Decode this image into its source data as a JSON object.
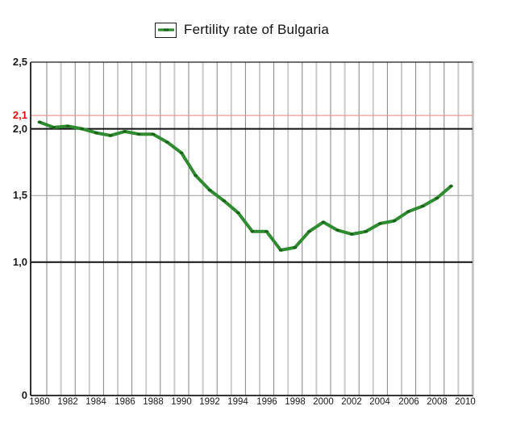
{
  "legend": {
    "label": "Fertility rate of Bulgaria"
  },
  "chart_data": {
    "type": "line",
    "title": "Fertility rate of Bulgaria",
    "series_name": "Fertility rate of Bulgaria",
    "x": [
      1980,
      1981,
      1982,
      1983,
      1984,
      1985,
      1986,
      1987,
      1988,
      1989,
      1990,
      1991,
      1992,
      1993,
      1994,
      1995,
      1996,
      1997,
      1998,
      1999,
      2000,
      2001,
      2002,
      2003,
      2004,
      2005,
      2006,
      2007,
      2008,
      2009
    ],
    "values": [
      2.05,
      2.01,
      2.02,
      2.0,
      1.97,
      1.95,
      1.98,
      1.96,
      1.96,
      1.9,
      1.82,
      1.65,
      1.54,
      1.46,
      1.37,
      1.23,
      1.23,
      1.09,
      1.11,
      1.23,
      1.3,
      1.24,
      1.21,
      1.23,
      1.29,
      1.31,
      1.38,
      1.42,
      1.48,
      1.57
    ],
    "xlim": [
      1980,
      2010
    ],
    "ylim": [
      0,
      2.5
    ],
    "grid": "vertical-gridline-every-year",
    "legend_position": "top-center",
    "x_tick_labels": [
      "1980",
      "1982",
      "1984",
      "1986",
      "1988",
      "1990",
      "1992",
      "1994",
      "1996",
      "1998",
      "2000",
      "2002",
      "2004",
      "2006",
      "2008",
      "2010"
    ],
    "y_ticks": [
      {
        "label": "2,5",
        "value": 2.5,
        "color": "#1a1a1a"
      },
      {
        "label": "2,1",
        "value": 2.1,
        "color": "#dd1111"
      },
      {
        "label": "2,0",
        "value": 2.0,
        "color": "#1a1a1a"
      },
      {
        "label": "1,5",
        "value": 1.5,
        "color": "#1a1a1a"
      },
      {
        "label": "1,0",
        "value": 1.0,
        "color": "#1a1a1a"
      },
      {
        "label": "0",
        "value": 0,
        "color": "#1a1a1a"
      }
    ],
    "reference_lines": [
      {
        "value": 2.1,
        "color": "#ef8a8a",
        "width": 1.2
      },
      {
        "value": 2.0,
        "color": "#111111",
        "width": 2
      },
      {
        "value": 1.5,
        "color": "#9b9b9b",
        "width": 1
      },
      {
        "value": 1.0,
        "color": "#111111",
        "width": 2
      }
    ],
    "line_color": "#2f8b2f",
    "marker_color": "#186018",
    "gridline_color_even_year": "#7d847d",
    "gridline_color_odd_year": "#cbcbcb",
    "frame_color": "#1a1a1a"
  }
}
